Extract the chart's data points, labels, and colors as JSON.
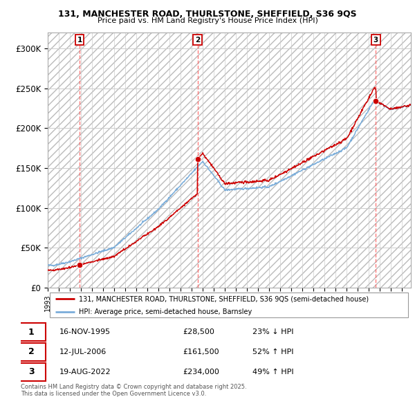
{
  "title_line1": "131, MANCHESTER ROAD, THURLSTONE, SHEFFIELD, S36 9QS",
  "title_line2": "Price paid vs. HM Land Registry's House Price Index (HPI)",
  "xlim_start": 1993.0,
  "xlim_end": 2025.8,
  "ylim": [
    0,
    320000
  ],
  "yticks": [
    0,
    50000,
    100000,
    150000,
    200000,
    250000,
    300000
  ],
  "ytick_labels": [
    "£0",
    "£50K",
    "£100K",
    "£150K",
    "£200K",
    "£250K",
    "£300K"
  ],
  "sale_dates": [
    1995.88,
    2006.54,
    2022.64
  ],
  "sale_prices": [
    28500,
    161500,
    234000
  ],
  "sale_labels": [
    "1",
    "2",
    "3"
  ],
  "property_color": "#cc0000",
  "hpi_color": "#7aadda",
  "grid_color": "#cccccc",
  "vline_color": "#ff6666",
  "legend_entries": [
    "131, MANCHESTER ROAD, THURLSTONE, SHEFFIELD, S36 9QS (semi-detached house)",
    "HPI: Average price, semi-detached house, Barnsley"
  ],
  "table_rows": [
    {
      "num": "1",
      "date": "16-NOV-1995",
      "price": "£28,500",
      "hpi": "23% ↓ HPI"
    },
    {
      "num": "2",
      "date": "12-JUL-2006",
      "price": "£161,500",
      "hpi": "52% ↑ HPI"
    },
    {
      "num": "3",
      "date": "19-AUG-2022",
      "price": "£234,000",
      "hpi": "49% ↑ HPI"
    }
  ],
  "footer": "Contains HM Land Registry data © Crown copyright and database right 2025.\nThis data is licensed under the Open Government Licence v3.0."
}
